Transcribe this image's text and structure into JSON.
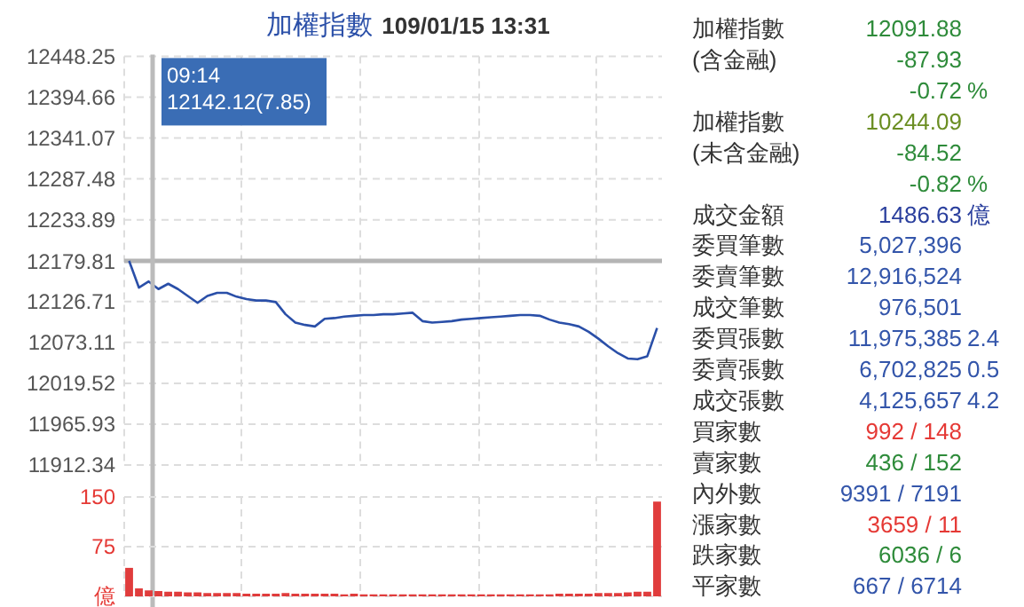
{
  "chart_data": [
    {
      "type": "line",
      "title": "加權指數",
      "subtitle": "109/01/15 13:31",
      "color": "#2a4fa8",
      "grid": true,
      "tick_labels": "y",
      "categories": [
        null,
        null,
        null,
        null,
        null,
        null,
        null,
        null,
        null,
        null,
        null,
        null,
        null,
        null,
        null,
        null,
        null,
        null,
        null,
        null,
        null,
        null,
        null,
        null,
        null,
        null,
        null,
        null,
        null,
        null,
        null,
        null,
        null,
        null,
        null,
        null,
        null,
        null,
        null,
        null,
        null,
        null,
        null,
        null,
        null,
        null,
        null,
        null,
        null,
        null,
        null,
        null,
        null,
        null,
        null
      ],
      "values": [
        12180,
        12145,
        12153,
        12143,
        12150,
        12143,
        12134,
        12125,
        12134,
        12138,
        12138,
        12133,
        12130,
        12128,
        12128,
        12126,
        12110,
        12099,
        12096,
        12094,
        12104,
        12105,
        12107,
        12108,
        12109,
        12109,
        12110,
        12110,
        12111,
        12112,
        12101,
        12099,
        12100,
        12101,
        12103,
        12104,
        12105,
        12106,
        12107,
        12108,
        12109,
        12109,
        12108,
        12103,
        12099,
        12097,
        12094,
        12087,
        12078,
        12068,
        12059,
        12052,
        12051,
        12055,
        12092
      ],
      "ylim": [
        11912.34,
        12448.25
      ],
      "yticks": [
        11912.34,
        11965.93,
        12019.52,
        12073.11,
        12126.71,
        12179.81,
        12233.89,
        12287.48,
        12341.07,
        12394.66,
        12448.25
      ],
      "ref_lines": [
        {
          "axis": "y",
          "value": 12179.81,
          "color": "#b4b4b4"
        }
      ],
      "annotations": [
        "09:14\n12142.12(7.85)"
      ]
    },
    {
      "type": "bar",
      "color": "#e03c3c",
      "grid": true,
      "tick_labels": "y",
      "categories": [
        null,
        null,
        null,
        null,
        null,
        null,
        null,
        null,
        null,
        null,
        null,
        null,
        null,
        null,
        null,
        null,
        null,
        null,
        null,
        null,
        null,
        null,
        null,
        null,
        null,
        null,
        null,
        null,
        null,
        null,
        null,
        null,
        null,
        null,
        null,
        null,
        null,
        null,
        null,
        null,
        null,
        null,
        null,
        null,
        null,
        null,
        null,
        null,
        null,
        null,
        null,
        null,
        null,
        null,
        null
      ],
      "values": [
        43,
        12,
        9,
        8,
        7,
        7,
        6,
        6,
        5,
        5,
        5,
        5,
        4,
        4,
        4,
        4,
        5,
        4,
        4,
        4,
        4,
        4,
        3,
        4,
        3,
        3,
        3,
        3,
        3,
        3,
        3,
        3,
        3,
        3,
        3,
        3,
        3,
        3,
        3,
        3,
        3,
        3,
        3,
        3,
        4,
        4,
        4,
        4,
        5,
        5,
        5,
        6,
        7,
        7,
        143
      ],
      "ylim": [
        0,
        150
      ],
      "yticks": [
        {
          "value": 0,
          "label": "億"
        },
        75,
        150
      ]
    },
    {
      "type": "other",
      "categories": [
        "加權指數",
        "(含金融)",
        null,
        "加權指數",
        "(未含金融)",
        null,
        "成交金額",
        "委買筆數",
        "委賣筆數",
        "成交筆數",
        "委買張數",
        "委賣張數",
        "成交張數",
        "買家數",
        "賣家數",
        "內外數",
        "漲家數",
        "跌家數",
        "平家數"
      ],
      "value_labels": [
        "12091.88",
        "-87.93",
        "-0.72 %",
        "10244.09",
        "-84.52",
        "-0.82 %",
        "1486.63 億",
        "5,027,396",
        "12,916,524",
        "976,501",
        "11,975,385 2.4",
        "6,702,825 0.5",
        "4,125,657 4.2",
        "992 / 148",
        "436 / 152",
        "9391 / 7191",
        "3659 / 11",
        "6036 / 6",
        "667 / 6714"
      ],
      "colors": [
        "#2e8b3a",
        "#2e8b3a",
        "#2e8b3a",
        "#6b8e23",
        "#2e8b3a",
        "#2e8b3a",
        "#2a3f9d",
        "#3355aa",
        "#3355aa",
        "#3355aa",
        "#3355aa",
        "#3355aa",
        "#3355aa",
        "#e53935",
        "#2e8b3a",
        "#3355aa",
        "#e53935",
        "#2e8b3a",
        "#3355aa"
      ]
    }
  ]
}
